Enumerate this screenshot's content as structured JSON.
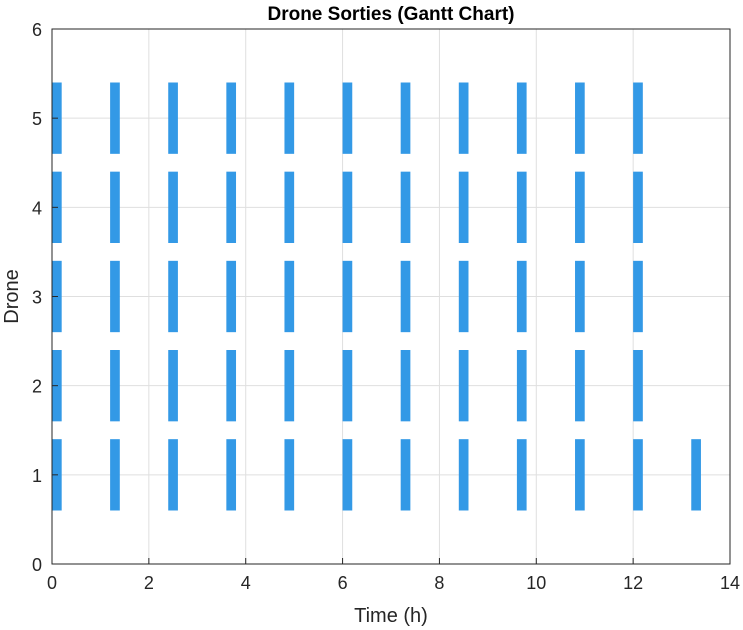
{
  "chart_data": {
    "type": "bar",
    "orientation": "gantt",
    "title": "Drone Sorties (Gantt Chart)",
    "xlabel": "Time (h)",
    "ylabel": "Drone",
    "xlim": [
      0,
      14
    ],
    "ylim": [
      0,
      6
    ],
    "xticks": [
      "0",
      "2",
      "4",
      "6",
      "8",
      "10",
      "12",
      "14"
    ],
    "yticks": [
      "0",
      "1",
      "2",
      "3",
      "4",
      "5",
      "6"
    ],
    "grid": true,
    "bar_color": "#3399e6",
    "bar_height": 0.8,
    "sorties": [
      {
        "drone": 1,
        "starts": [
          0.0,
          1.2,
          2.4,
          3.6,
          4.8,
          6.0,
          7.2,
          8.4,
          9.6,
          10.8,
          12.0,
          13.2
        ],
        "duration": 0.2
      },
      {
        "drone": 2,
        "starts": [
          0.0,
          1.2,
          2.4,
          3.6,
          4.8,
          6.0,
          7.2,
          8.4,
          9.6,
          10.8,
          12.0
        ],
        "duration": 0.2
      },
      {
        "drone": 3,
        "starts": [
          0.0,
          1.2,
          2.4,
          3.6,
          4.8,
          6.0,
          7.2,
          8.4,
          9.6,
          10.8,
          12.0
        ],
        "duration": 0.2
      },
      {
        "drone": 4,
        "starts": [
          0.0,
          1.2,
          2.4,
          3.6,
          4.8,
          6.0,
          7.2,
          8.4,
          9.6,
          10.8,
          12.0
        ],
        "duration": 0.2
      },
      {
        "drone": 5,
        "starts": [
          0.0,
          1.2,
          2.4,
          3.6,
          4.8,
          6.0,
          7.2,
          8.4,
          9.6,
          10.8,
          12.0
        ],
        "duration": 0.2
      }
    ]
  }
}
